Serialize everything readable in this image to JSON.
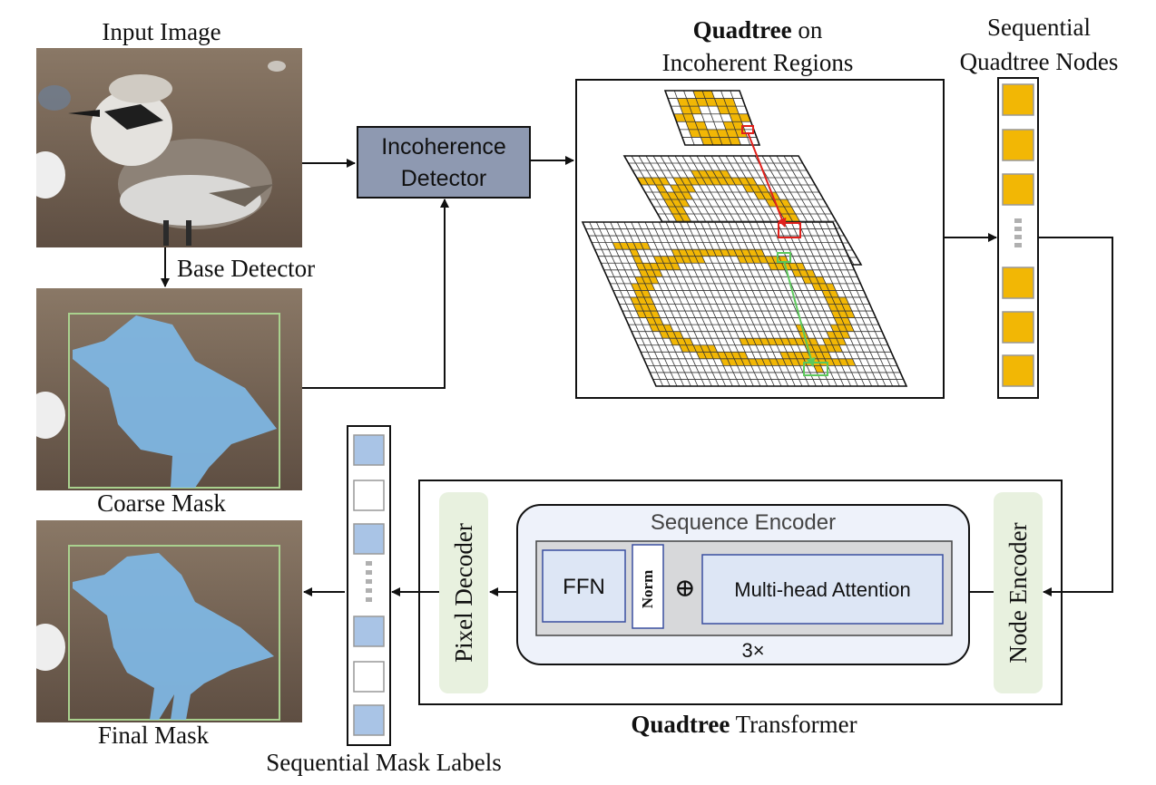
{
  "labels": {
    "input_image": "Input Image",
    "base_detector": "Base Detector",
    "coarse_mask": "Coarse Mask",
    "final_mask": "Final Mask",
    "incoherence_detector_line1": "Incoherence",
    "incoherence_detector_line2": "Detector",
    "quadtree_bold": "Quadtree",
    "quadtree_on": " on",
    "incoherent_regions": "Incoherent Regions",
    "sequential_line1": "Sequential",
    "sequential_line2": "Quadtree Nodes",
    "sequence_encoder": "Sequence Encoder",
    "ffn": "FFN",
    "norm": "Norm",
    "oplus": "⊕",
    "multihead": "Multi-head Attention",
    "repeat": "3×",
    "pixel_decoder": "Pixel Decoder",
    "node_encoder": "Node Encoder",
    "transformer_bold": "Quadtree",
    "transformer_rest": " Transformer",
    "mask_labels": "Sequential Mask Labels"
  },
  "colors": {
    "node_fill": "#f2b705",
    "grid_highlight": "#f2b705",
    "mask_blue": "#7fb8e6",
    "label_blue": "#a9c4e6",
    "detector_fill": "#8e99b1",
    "encoder_bg": "#eef2fa",
    "side_block": "#e8f1df",
    "bbox_green": "#a9d18e",
    "red_link": "#e0201b",
    "green_link": "#5cc85c"
  },
  "sequential_nodes": [
    "filled",
    "filled",
    "filled",
    "dots",
    "filled",
    "filled",
    "filled"
  ],
  "mask_label_cells": [
    "blue",
    "white",
    "blue",
    "dots",
    "blue",
    "white",
    "blue"
  ]
}
